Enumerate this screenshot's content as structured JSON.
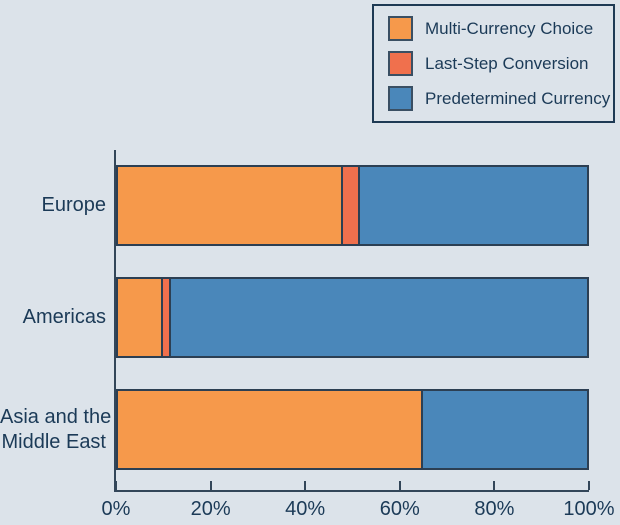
{
  "chart_data": {
    "type": "bar",
    "orientation": "horizontal",
    "stacked": true,
    "title": "",
    "categories": [
      "Europe",
      "Americas",
      "Asia and the Middle East"
    ],
    "category_label_lines": [
      [
        "Europe"
      ],
      [
        "Americas"
      ],
      [
        "Asia and the",
        "Middle East"
      ]
    ],
    "series": [
      {
        "name": "Multi-Currency Choice",
        "color": "#F6994B",
        "values": [
          48,
          10,
          65
        ]
      },
      {
        "name": "Last-Step Conversion",
        "color": "#F0704D",
        "values": [
          4,
          2,
          0
        ]
      },
      {
        "name": "Predetermined Currency",
        "color": "#4A87BA",
        "values": [
          48,
          88,
          35
        ]
      }
    ],
    "x_tick_labels": [
      "0%",
      "20%",
      "40%",
      "60%",
      "80%",
      "100%"
    ],
    "xlim": [
      0,
      100
    ],
    "grid": false,
    "legend_position": "top-right"
  },
  "colors": {
    "background": "#DCE3EA",
    "text": "#1B3A57",
    "axis": "#334659",
    "bar_border": "#2C3F53",
    "legend_border": "#1E3A54"
  }
}
